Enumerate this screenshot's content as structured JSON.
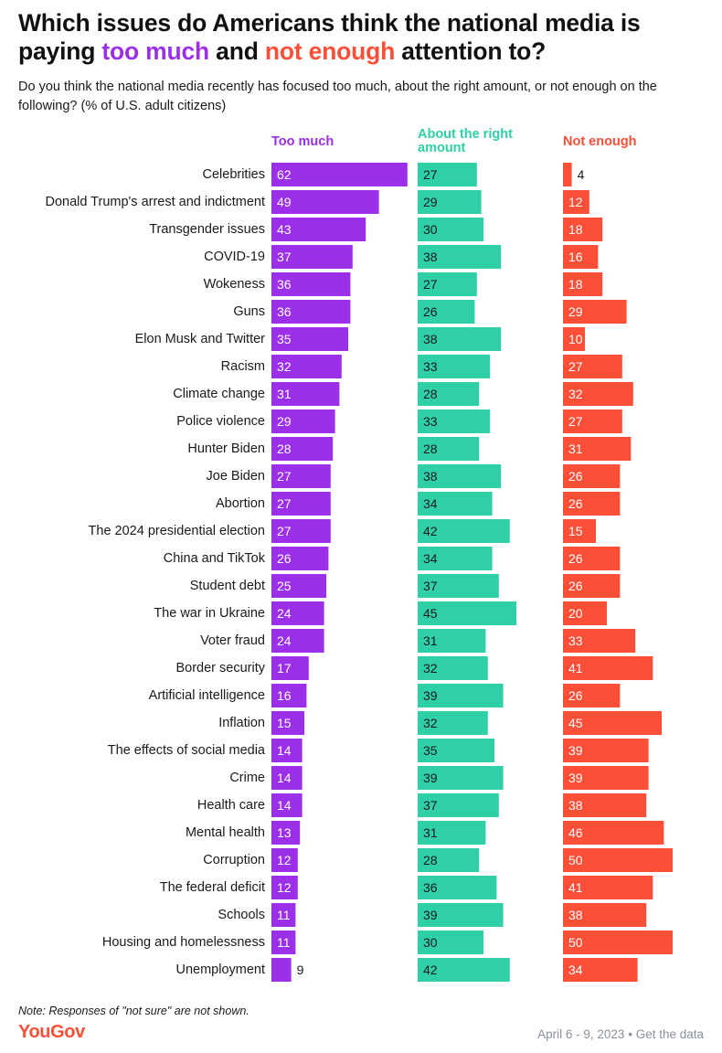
{
  "header": {
    "title_pre": "Which issues do Americans think the national media is paying ",
    "title_much": "too much",
    "title_mid": " and ",
    "title_notenough": "not enough",
    "title_post": " attention to?",
    "subtitle": "Do you think the national media recently has focused too much, about the right amount, or not enough on the following? (% of U.S. adult citizens)"
  },
  "columns": {
    "much": "Too much",
    "right": "About the right amount",
    "notenough": "Not enough"
  },
  "colors": {
    "too_much": "#9b2fea",
    "about_right": "#2fcfa7",
    "not_enough": "#fb4f38"
  },
  "chart_data": {
    "type": "bar",
    "categories": [
      "Celebrities",
      "Donald Trump's arrest and indictment",
      "Transgender issues",
      "COVID-19",
      "Wokeness",
      "Guns",
      "Elon Musk and Twitter",
      "Racism",
      "Climate change",
      "Police violence",
      "Hunter Biden",
      "Joe Biden",
      "Abortion",
      "The 2024 presidential election",
      "China and TikTok",
      "Student debt",
      "The war in Ukraine",
      "Voter fraud",
      "Border security",
      "Artificial intelligence",
      "Inflation",
      "The effects of social media",
      "Crime",
      "Health care",
      "Mental health",
      "Corruption",
      "The federal deficit",
      "Schools",
      "Housing and homelessness",
      "Unemployment"
    ],
    "series": [
      {
        "name": "Too much",
        "values": [
          62,
          49,
          43,
          37,
          36,
          36,
          35,
          32,
          31,
          29,
          28,
          27,
          27,
          27,
          26,
          25,
          24,
          24,
          17,
          16,
          15,
          14,
          14,
          14,
          13,
          12,
          12,
          11,
          11,
          9
        ]
      },
      {
        "name": "About the right amount",
        "values": [
          27,
          29,
          30,
          38,
          27,
          26,
          38,
          33,
          28,
          33,
          28,
          38,
          34,
          42,
          34,
          37,
          45,
          31,
          32,
          39,
          32,
          35,
          39,
          37,
          31,
          28,
          36,
          39,
          30,
          42
        ]
      },
      {
        "name": "Not enough",
        "values": [
          4,
          12,
          18,
          16,
          18,
          29,
          10,
          27,
          32,
          27,
          31,
          26,
          26,
          15,
          26,
          26,
          20,
          33,
          41,
          26,
          45,
          39,
          39,
          38,
          46,
          50,
          41,
          38,
          50,
          34
        ]
      }
    ]
  },
  "footer": {
    "note": "Note: Responses of \"not sure\" are not shown.",
    "logo": "YouGov",
    "date": "April 6 - 9, 2023",
    "separator": "•",
    "link": "Get the data"
  }
}
